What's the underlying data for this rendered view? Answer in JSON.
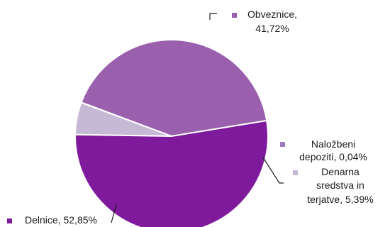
{
  "chart_data": {
    "type": "pie",
    "slices": [
      {
        "label": "Obveznice",
        "value": 41.72,
        "color": "#9A5FAD",
        "text_lines": [
          "Obveznice,",
          "41,72%"
        ]
      },
      {
        "label": "Naložbeni depoziti",
        "value": 0.04,
        "color": "#9D7CBE",
        "text_lines": [
          "Naložbeni",
          "depoziti, 0,04%"
        ]
      },
      {
        "label": "Denarna sredstva in terjatve",
        "value": 5.39,
        "color": "#C5B9D6",
        "text_lines": [
          "Denarna",
          "sredstva in",
          "terjatve, 5,39%"
        ]
      },
      {
        "label": "Delnice",
        "value": 52.85,
        "color": "#7F1A9C",
        "text_lines": [
          "Delnice, 52,85%"
        ]
      }
    ]
  }
}
